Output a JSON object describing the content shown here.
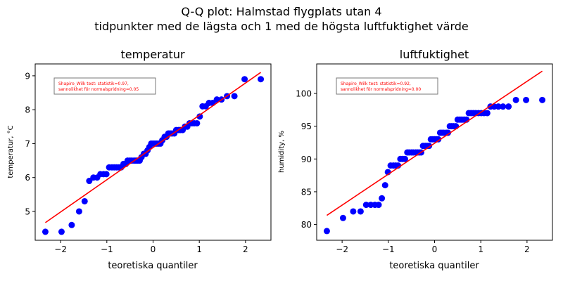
{
  "figure": {
    "suptitle_line1": "Q-Q plot: Halmstad flygplats utan 4",
    "suptitle_line2": "tidpunkter med de lägsta och 1 med de högsta luftfuktighet värde"
  },
  "colors": {
    "points": "#0000ff",
    "fit_line": "#ff0000",
    "annotation_text": "#ff0000",
    "axes": "#000000"
  },
  "chart_data": [
    {
      "type": "scatter",
      "title": "temperatur",
      "xlabel": "teoretiska quantiler",
      "ylabel": "temperatur, °C",
      "xlim": [
        -2.55,
        2.55
      ],
      "ylim": [
        4.15,
        9.35
      ],
      "xticks": [
        -2,
        -1,
        0,
        1,
        2
      ],
      "yticks": [
        5,
        6,
        7,
        8,
        9
      ],
      "xtick_labels": [
        "−2",
        "−1",
        "0",
        "1",
        "2"
      ],
      "ytick_labels": [
        "5",
        "6",
        "7",
        "8",
        "9"
      ],
      "annotation": {
        "line1": "Shapiro_Wilk test: statistik=0.97,",
        "line2": "sannolikhet för normalspridning=0.05"
      },
      "fit_line": {
        "x": [
          -2.33,
          2.33
        ],
        "y": [
          4.67,
          9.1
        ]
      },
      "points": [
        [
          -2.33,
          4.4
        ],
        [
          -1.98,
          4.4
        ],
        [
          -1.76,
          4.6
        ],
        [
          -1.6,
          5.0
        ],
        [
          -1.48,
          5.3
        ],
        [
          -1.38,
          5.9
        ],
        [
          -1.29,
          6.0
        ],
        [
          -1.21,
          6.0
        ],
        [
          -1.14,
          6.1
        ],
        [
          -1.07,
          6.1
        ],
        [
          -1.01,
          6.1
        ],
        [
          -0.95,
          6.3
        ],
        [
          -0.89,
          6.3
        ],
        [
          -0.84,
          6.3
        ],
        [
          -0.79,
          6.3
        ],
        [
          -0.74,
          6.3
        ],
        [
          -0.69,
          6.3
        ],
        [
          -0.64,
          6.4
        ],
        [
          -0.59,
          6.4
        ],
        [
          -0.55,
          6.5
        ],
        [
          -0.5,
          6.5
        ],
        [
          -0.46,
          6.5
        ],
        [
          -0.41,
          6.5
        ],
        [
          -0.37,
          6.5
        ],
        [
          -0.33,
          6.5
        ],
        [
          -0.29,
          6.5
        ],
        [
          -0.25,
          6.6
        ],
        [
          -0.2,
          6.7
        ],
        [
          -0.16,
          6.7
        ],
        [
          -0.12,
          6.8
        ],
        [
          -0.08,
          6.9
        ],
        [
          -0.04,
          7.0
        ],
        [
          0.0,
          7.0
        ],
        [
          0.04,
          7.0
        ],
        [
          0.08,
          7.0
        ],
        [
          0.12,
          7.0
        ],
        [
          0.16,
          7.0
        ],
        [
          0.2,
          7.1
        ],
        [
          0.25,
          7.2
        ],
        [
          0.29,
          7.2
        ],
        [
          0.33,
          7.3
        ],
        [
          0.37,
          7.3
        ],
        [
          0.41,
          7.3
        ],
        [
          0.46,
          7.3
        ],
        [
          0.5,
          7.4
        ],
        [
          0.55,
          7.4
        ],
        [
          0.59,
          7.4
        ],
        [
          0.64,
          7.4
        ],
        [
          0.69,
          7.5
        ],
        [
          0.74,
          7.5
        ],
        [
          0.79,
          7.6
        ],
        [
          0.84,
          7.6
        ],
        [
          0.89,
          7.6
        ],
        [
          0.95,
          7.6
        ],
        [
          1.01,
          7.8
        ],
        [
          1.07,
          8.1
        ],
        [
          1.14,
          8.1
        ],
        [
          1.21,
          8.2
        ],
        [
          1.29,
          8.2
        ],
        [
          1.38,
          8.3
        ],
        [
          1.48,
          8.3
        ],
        [
          1.6,
          8.4
        ],
        [
          1.76,
          8.4
        ],
        [
          1.98,
          8.9
        ],
        [
          2.33,
          8.9
        ]
      ]
    },
    {
      "type": "scatter",
      "title": "luftfuktighet",
      "xlabel": "teoretiska quantiler",
      "ylabel": "humidity, %",
      "xlim": [
        -2.55,
        2.55
      ],
      "ylim": [
        77.6,
        104.5
      ],
      "xticks": [
        -2,
        -1,
        0,
        1,
        2
      ],
      "yticks": [
        80,
        85,
        90,
        95,
        100
      ],
      "xtick_labels": [
        "−2",
        "−1",
        "0",
        "1",
        "2"
      ],
      "ytick_labels": [
        "80",
        "85",
        "90",
        "95",
        "100"
      ],
      "annotation": {
        "line1": "Shapiro_Wilk test: statistik=0.92,",
        "line2": "sannolikhet för normalspridning=0.00"
      },
      "fit_line": {
        "x": [
          -2.33,
          2.33
        ],
        "y": [
          81.4,
          103.4
        ]
      },
      "points": [
        [
          -2.33,
          79
        ],
        [
          -1.98,
          81
        ],
        [
          -1.76,
          82
        ],
        [
          -1.6,
          82
        ],
        [
          -1.48,
          83
        ],
        [
          -1.38,
          83
        ],
        [
          -1.29,
          83
        ],
        [
          -1.21,
          83
        ],
        [
          -1.14,
          84
        ],
        [
          -1.07,
          86
        ],
        [
          -1.01,
          88
        ],
        [
          -0.95,
          89
        ],
        [
          -0.89,
          89
        ],
        [
          -0.84,
          89
        ],
        [
          -0.79,
          89
        ],
        [
          -0.74,
          90
        ],
        [
          -0.69,
          90
        ],
        [
          -0.64,
          90
        ],
        [
          -0.59,
          91
        ],
        [
          -0.55,
          91
        ],
        [
          -0.5,
          91
        ],
        [
          -0.46,
          91
        ],
        [
          -0.41,
          91
        ],
        [
          -0.37,
          91
        ],
        [
          -0.33,
          91
        ],
        [
          -0.29,
          91
        ],
        [
          -0.25,
          92
        ],
        [
          -0.2,
          92
        ],
        [
          -0.16,
          92
        ],
        [
          -0.12,
          92
        ],
        [
          -0.08,
          93
        ],
        [
          -0.04,
          93
        ],
        [
          0.0,
          93
        ],
        [
          0.04,
          93
        ],
        [
          0.08,
          93
        ],
        [
          0.12,
          94
        ],
        [
          0.16,
          94
        ],
        [
          0.2,
          94
        ],
        [
          0.25,
          94
        ],
        [
          0.29,
          94
        ],
        [
          0.33,
          95
        ],
        [
          0.37,
          95
        ],
        [
          0.41,
          95
        ],
        [
          0.46,
          95
        ],
        [
          0.5,
          96
        ],
        [
          0.55,
          96
        ],
        [
          0.59,
          96
        ],
        [
          0.64,
          96
        ],
        [
          0.69,
          96
        ],
        [
          0.74,
          97
        ],
        [
          0.79,
          97
        ],
        [
          0.84,
          97
        ],
        [
          0.89,
          97
        ],
        [
          0.95,
          97
        ],
        [
          1.01,
          97
        ],
        [
          1.07,
          97
        ],
        [
          1.14,
          97
        ],
        [
          1.21,
          98
        ],
        [
          1.29,
          98
        ],
        [
          1.38,
          98
        ],
        [
          1.48,
          98
        ],
        [
          1.6,
          98
        ],
        [
          1.76,
          99
        ],
        [
          1.98,
          99
        ],
        [
          2.33,
          99
        ]
      ]
    }
  ]
}
